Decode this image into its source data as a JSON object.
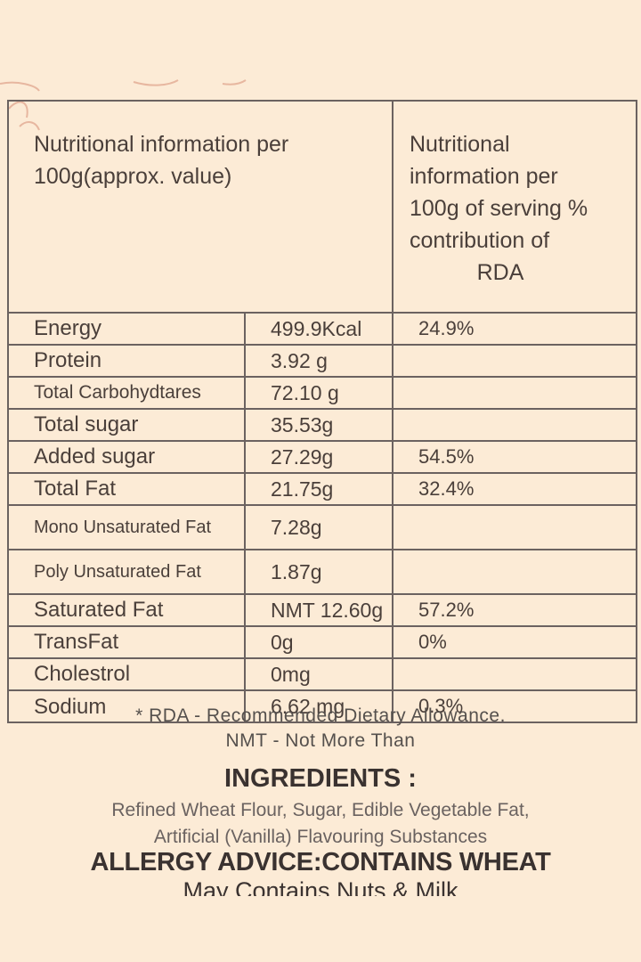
{
  "table": {
    "header_left": "Nutritional information per 100g(approx. value)",
    "header_right_lines": [
      "Nutritional",
      "information per",
      "100g of serving %",
      "contribution of",
      "RDA"
    ],
    "rows": [
      {
        "nutrient": "Energy",
        "value": "499.9Kcal",
        "rda": "24.9%"
      },
      {
        "nutrient": "Protein",
        "value": "3.92 g",
        "rda": ""
      },
      {
        "nutrient": "Total Carbohydtares",
        "value": "72.10 g",
        "rda": ""
      },
      {
        "nutrient": "Total sugar",
        "value": "35.53g",
        "rda": ""
      },
      {
        "nutrient": "Added sugar",
        "value": "27.29g",
        "rda": "54.5%"
      },
      {
        "nutrient": "Total Fat",
        "value": "21.75g",
        "rda": "32.4%"
      },
      {
        "nutrient": "Mono Unsaturated Fat",
        "value": "7.28g",
        "rda": ""
      },
      {
        "nutrient": "Poly Unsaturated Fat",
        "value": "1.87g",
        "rda": ""
      },
      {
        "nutrient": "Saturated Fat",
        "value": "NMT 12.60g",
        "rda": "57.2%"
      },
      {
        "nutrient": "TransFat",
        "value": "0g",
        "rda": "0%"
      },
      {
        "nutrient": "Cholestrol",
        "value": "0mg",
        "rda": ""
      },
      {
        "nutrient": "Sodium",
        "value": "6.62 mg",
        "rda": "0.3%"
      }
    ]
  },
  "footnotes": {
    "rda_note": "* RDA - Recommended Dietary Allowance.",
    "nmt_note": "NMT - Not More Than"
  },
  "ingredients": {
    "title": "INGREDIENTS :",
    "line1": "Refined Wheat Flour, Sugar, Edible Vegetable Fat,",
    "line2": "Artificial (Vanilla) Flavouring Substances"
  },
  "allergy": {
    "title": "ALLERGY ADVICE:CONTAINS WHEAT",
    "line": "May Contains Nuts & Milk"
  }
}
